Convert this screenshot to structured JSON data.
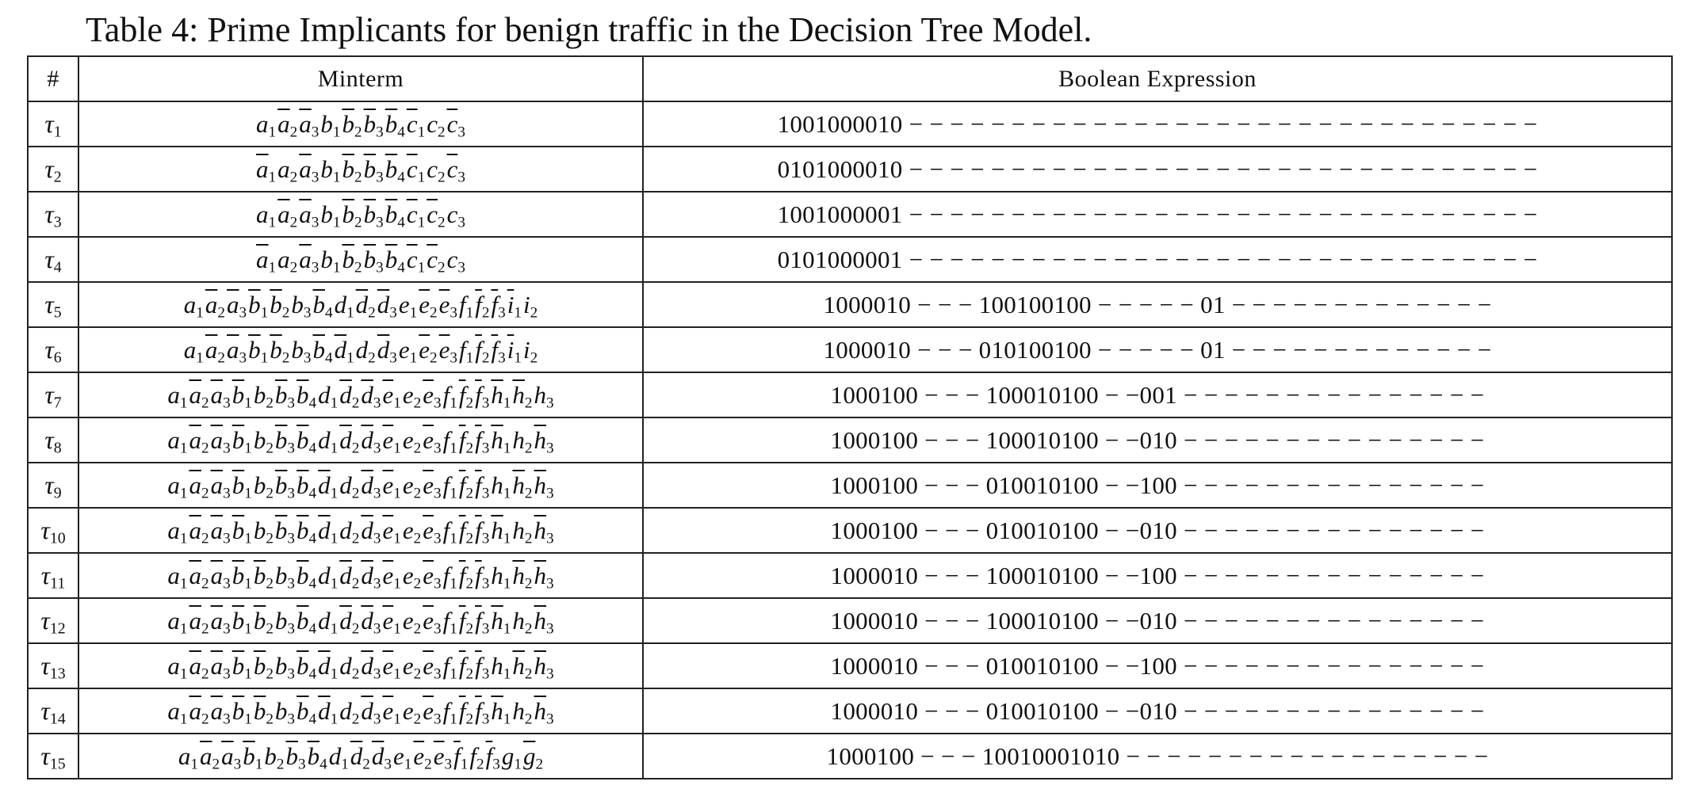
{
  "caption": "Table 4: Prime Implicants for benign traffic in the Decision Tree Model.",
  "headers": {
    "index": "#",
    "minterm": "Minterm",
    "expression": "Boolean Expression"
  },
  "rows": [
    {
      "tau": "1",
      "minterm": "a1 ~a2 ~a3 b1 ~b2 ~b3 ~b4 ~c1 c2 ~c3",
      "expression": "1001000010 − − − − − − − − − − − − − − − − − − − − − − − − − − − − − − −"
    },
    {
      "tau": "2",
      "minterm": "~a1 a2 ~a3 b1 ~b2 ~b3 ~b4 ~c1 c2 ~c3",
      "expression": "0101000010 − − − − − − − − − − − − − − − − − − − − − − − − − − − − − − −"
    },
    {
      "tau": "3",
      "minterm": "a1 ~a2 ~a3 b1 ~b2 ~b3 ~b4 ~c1 ~c2 c3",
      "expression": "1001000001 − − − − − − − − − − − − − − − − − − − − − − − − − − − − − − −"
    },
    {
      "tau": "4",
      "minterm": "~a1 a2 ~a3 b1 ~b2 ~b3 ~b4 ~c1 ~c2 c3",
      "expression": "0101000001 − − − − − − − − − − − − − − − − − − − − − − − − − − − − − − −"
    },
    {
      "tau": "5",
      "minterm": "a1 ~a2 ~a3 ~b1 ~b2 b3 ~b4 d1 ~d2 ~d3 e1 ~e2 ~e3 f1 ~f2 ~f3 ~i1 i2",
      "expression": "1000010 − − − 100100100 − − − − − 01 − − − − − − − − − − − − −"
    },
    {
      "tau": "6",
      "minterm": "a1 ~a2 ~a3 ~b1 ~b2 b3 ~b4 ~d1 d2 ~d3 e1 ~e2 ~e3 f1 ~f2 ~f3 ~i1 i2",
      "expression": "1000010 − − − 010100100 − − − − − 01 − − − − − − − − − − − − −"
    },
    {
      "tau": "7",
      "minterm": "a1 ~a2 ~a3 ~b1 b2 ~b3 ~b4 d1 ~d2 ~d3 ~e1 e2 ~e3 f1 ~f2 ~f3 ~h1 ~h2 h3",
      "expression": "1000100 − − − 100010100 − −001 − − − − − − − − − − − − − − −"
    },
    {
      "tau": "8",
      "minterm": "a1 ~a2 ~a3 ~b1 b2 ~b3 ~b4 d1 ~d2 ~d3 ~e1 e2 ~e3 f1 ~f2 ~f3 ~h1 h2 ~h3",
      "expression": "1000100 − − − 100010100 − −010 − − − − − − − − − − − − − − −"
    },
    {
      "tau": "9",
      "minterm": "a1 ~a2 ~a3 ~b1 b2 ~b3 ~b4 ~d1 d2 ~d3 ~e1 e2 ~e3 f1 ~f2 ~f3 h1 ~h2 ~h3",
      "expression": "1000100 − − − 010010100 − −100 − − − − − − − − − − − − − − −"
    },
    {
      "tau": "10",
      "minterm": "a1 ~a2 ~a3 ~b1 b2 ~b3 ~b4 ~d1 d2 ~d3 ~e1 e2 ~e3 f1 ~f2 ~f3 ~h1 h2 ~h3",
      "expression": "1000100 − − − 010010100 − −010 − − − − − − − − − − − − − − −"
    },
    {
      "tau": "11",
      "minterm": "a1 ~a2 ~a3 ~b1 ~b2 b3 ~b4 d1 ~d2 ~d3 ~e1 e2 ~e3 f1 ~f2 ~f3 h1 ~h2 ~h3",
      "expression": "1000010 − − − 100010100 − −100 − − − − − − − − − − − − − − −"
    },
    {
      "tau": "12",
      "minterm": "a1 ~a2 ~a3 ~b1 ~b2 b3 ~b4 d1 ~d2 ~d3 ~e1 e2 ~e3 f1 ~f2 ~f3 ~h1 h2 ~h3",
      "expression": "1000010 − − − 100010100 − −010 − − − − − − − − − − − − − − −"
    },
    {
      "tau": "13",
      "minterm": "a1 ~a2 ~a3 ~b1 ~b2 b3 ~b4 ~d1 d2 ~d3 ~e1 e2 ~e3 f1 ~f2 ~f3 h1 ~h2 ~h3",
      "expression": "1000010 − − − 010010100 − −100 − − − − − − − − − − − − − − −"
    },
    {
      "tau": "14",
      "minterm": "a1 ~a2 ~a3 ~b1 ~b2 b3 ~b4 ~d1 d2 ~d3 ~e1 e2 ~e3 f1 ~f2 ~f3 ~h1 h2 ~h3",
      "expression": "1000010 − − − 010010100 − −010 − − − − − − − − − − − − − − −"
    },
    {
      "tau": "15",
      "minterm": "a1 ~a2 ~a3 ~b1 b2 ~b3 ~b4 d1 ~d2 ~d3 e1 ~e2 ~e3 ~f1 f2 ~f3 g1 ~g2",
      "expression": "1000100 − − − 10010001010 − − − − − − − − − − − − − − − − − −"
    }
  ]
}
